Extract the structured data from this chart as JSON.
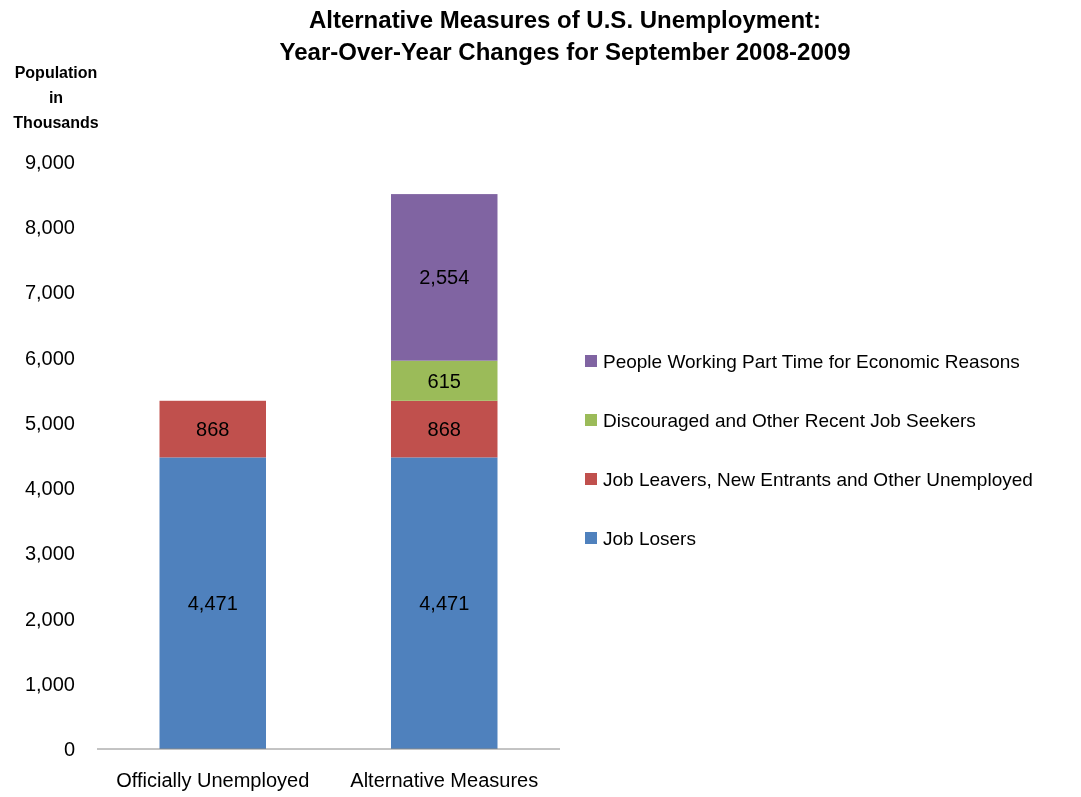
{
  "chart_data": {
    "type": "bar",
    "title": "Alternative Measures of U.S. Unemployment:\nYear-Over-Year Changes for September 2008-2009",
    "ylabel": "Population in Thousands",
    "categories": [
      "Officially Unemployed",
      "Alternative Measures"
    ],
    "stacked": true,
    "series": [
      {
        "name": "Job Losers",
        "color": "#4f81bd",
        "values": [
          4471,
          4471
        ],
        "value_labels": [
          "4,471",
          "4,471"
        ]
      },
      {
        "name": "Job Leavers, New Entrants and Other Unemployed",
        "color": "#c0504d",
        "values": [
          868,
          868
        ],
        "value_labels": [
          "868",
          "868"
        ]
      },
      {
        "name": "Discouraged and Other Recent Job Seekers",
        "color": "#9bbb59",
        "values": [
          null,
          615
        ],
        "value_labels": [
          null,
          "615"
        ]
      },
      {
        "name": "People Working Part Time for Economic Reasons",
        "color": "#8064a2",
        "values": [
          null,
          2554
        ],
        "value_labels": [
          null,
          "2,554"
        ]
      }
    ],
    "ylim": [
      0,
      9000
    ],
    "yticks": [
      {
        "value": 0,
        "label": "0"
      },
      {
        "value": 1000,
        "label": "1,000"
      },
      {
        "value": 2000,
        "label": "2,000"
      },
      {
        "value": 3000,
        "label": "3,000"
      },
      {
        "value": 4000,
        "label": "4,000"
      },
      {
        "value": 5000,
        "label": "5,000"
      },
      {
        "value": 6000,
        "label": "6,000"
      },
      {
        "value": 7000,
        "label": "7,000"
      },
      {
        "value": 8000,
        "label": "8,000"
      },
      {
        "value": 9000,
        "label": "9,000"
      }
    ],
    "grid": false,
    "legend": "right"
  }
}
